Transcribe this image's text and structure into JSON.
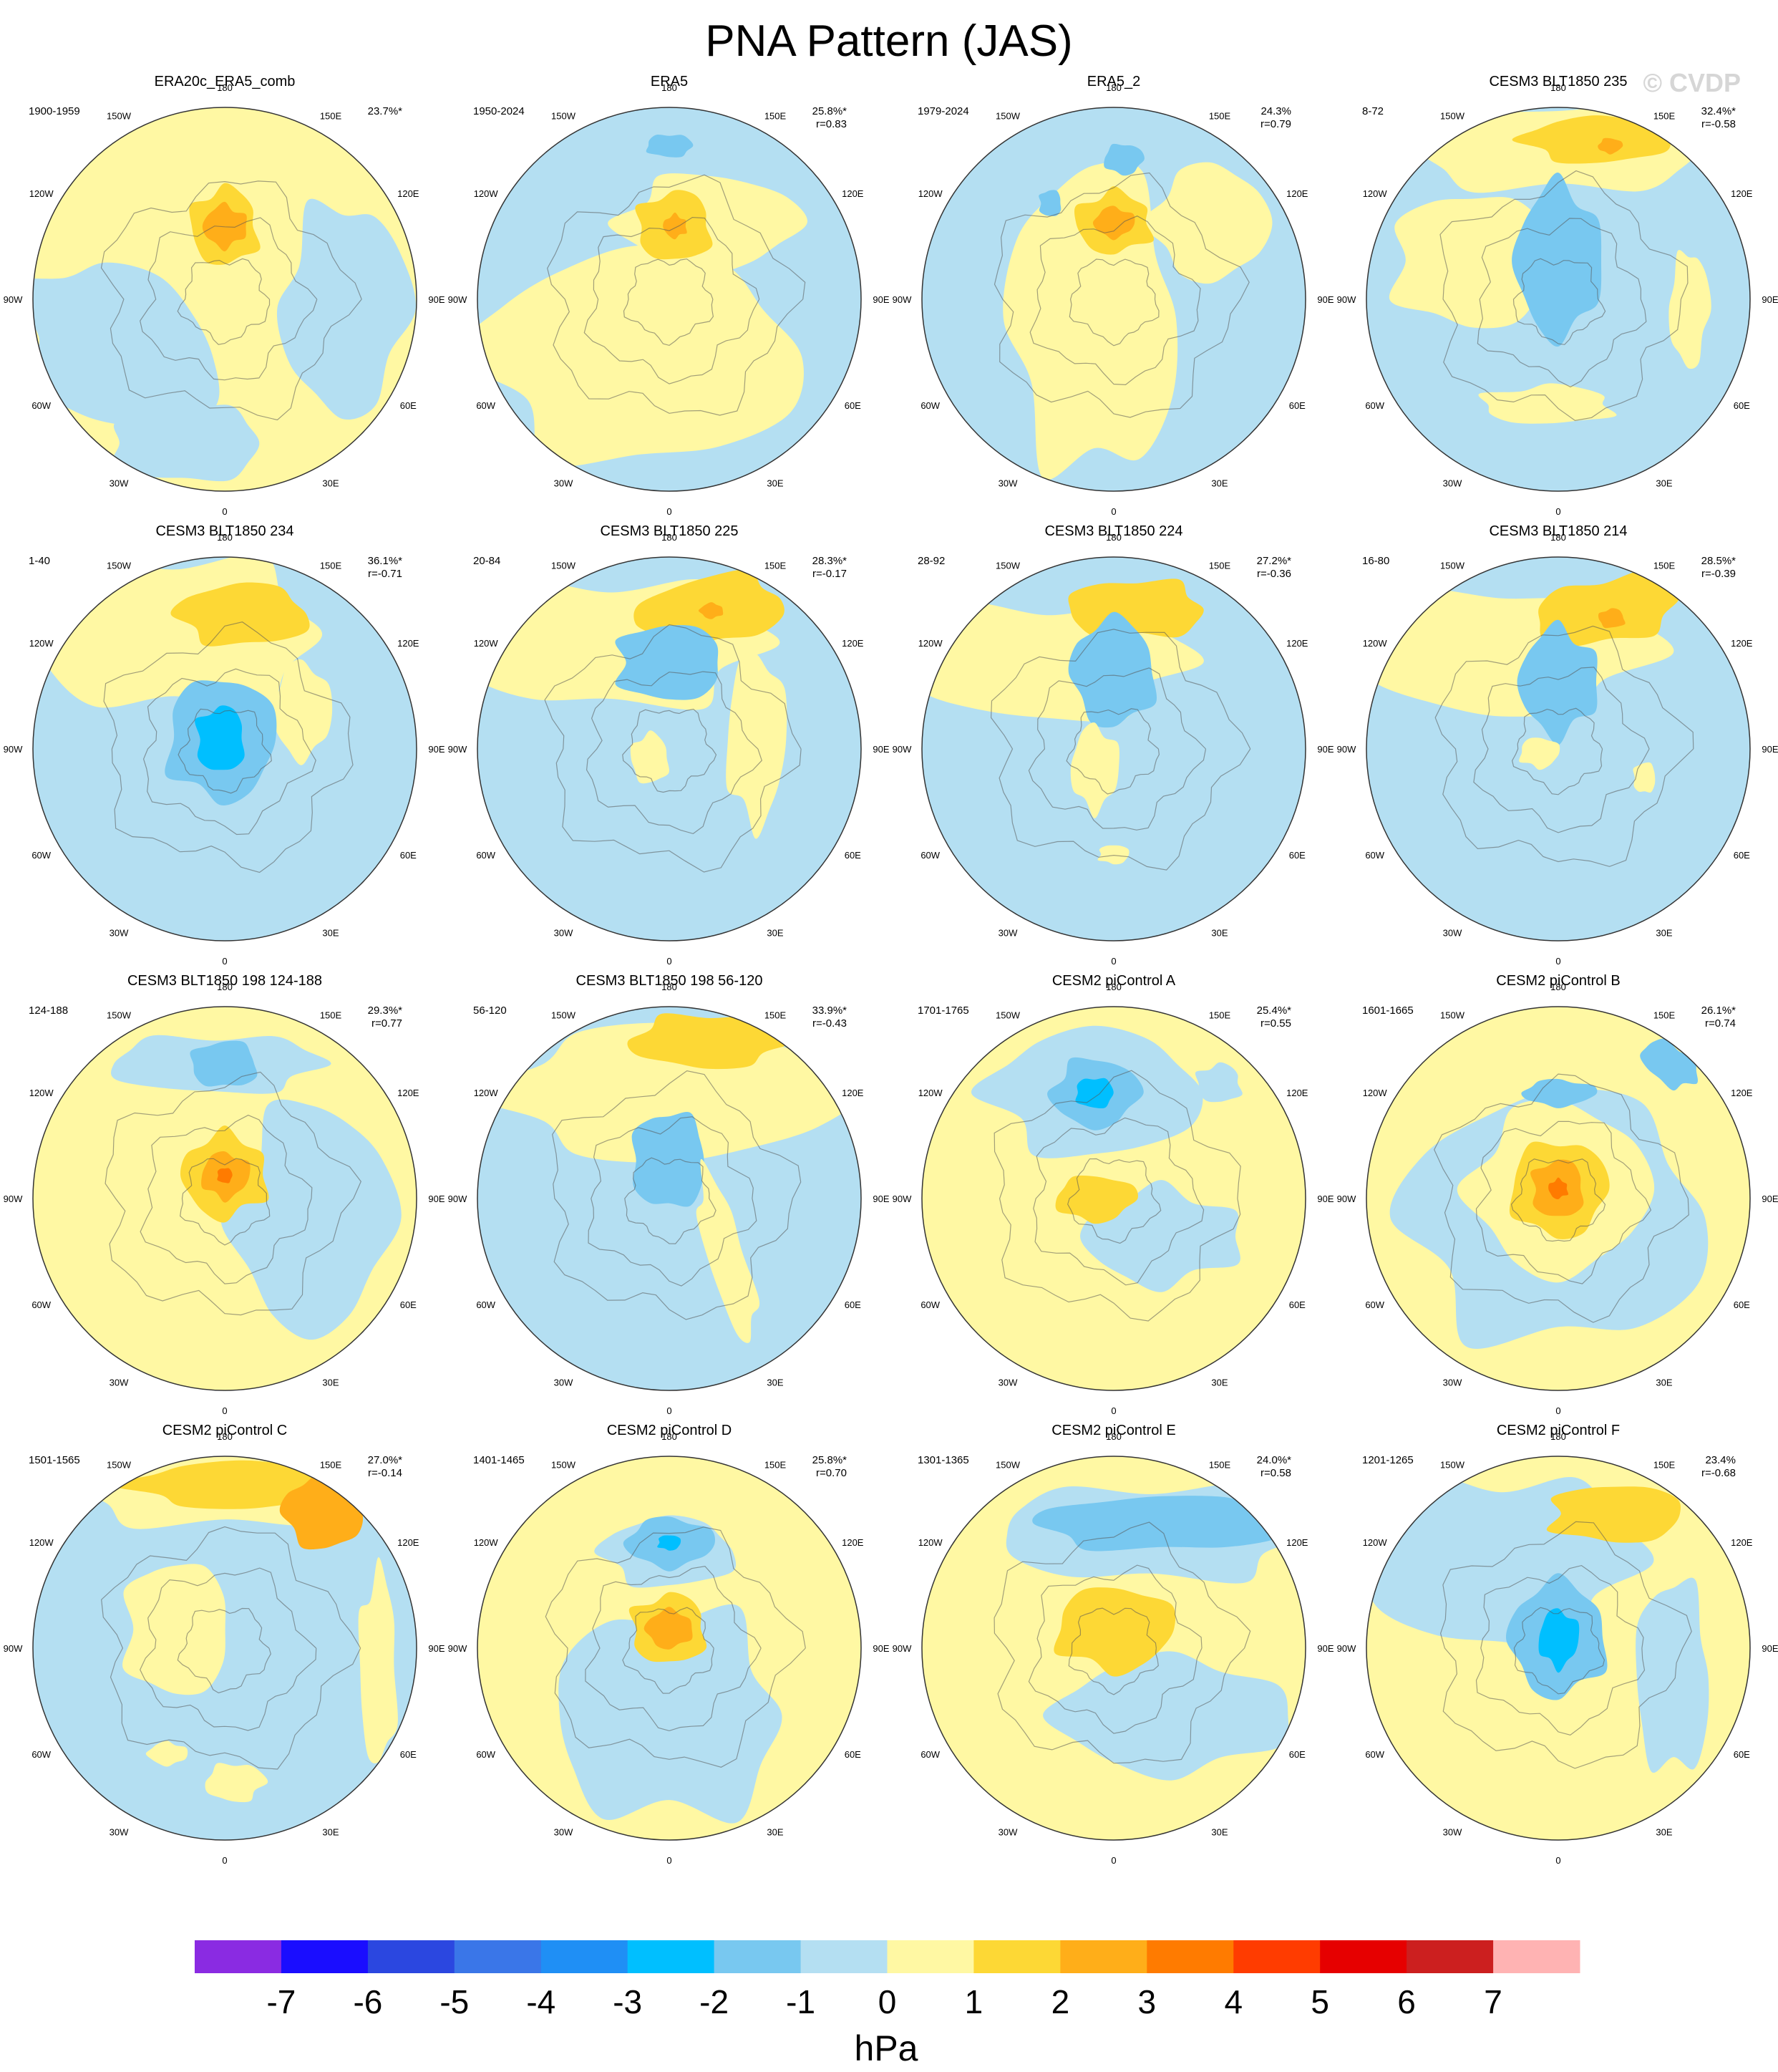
{
  "figure": {
    "title": "PNA Pattern (JAS)",
    "watermark": "© CVDP",
    "unit_label": "hPa"
  },
  "chart_data": {
    "type": "heatmap",
    "projection": "polar stereographic (Northern Hemisphere)",
    "variable": "sea level pressure anomaly",
    "colorbar": {
      "ticks": [
        "-7",
        "-6",
        "-5",
        "-4",
        "-3",
        "-2",
        "-1",
        "0",
        "1",
        "2",
        "3",
        "4",
        "5",
        "6",
        "7"
      ],
      "levels": [
        -7,
        -6,
        -5,
        -4,
        -3,
        -2,
        -1,
        0,
        1,
        2,
        3,
        4,
        5,
        6,
        7
      ],
      "colors": [
        "#8a2be2",
        "#1a0dff",
        "#2b47e0",
        "#3a76e8",
        "#1f8ff5",
        "#00bfff",
        "#78c8f0",
        "#b4dff2",
        "#fff8a3",
        "#fdd835",
        "#ffae19",
        "#ff7b00",
        "#ff3c00",
        "#e60000",
        "#cc1f1f",
        "#ffb3b3"
      ],
      "units": "hPa"
    },
    "longitude_labels": [
      "180",
      "150E",
      "120E",
      "90E",
      "60E",
      "30E",
      "0",
      "30W",
      "60W",
      "90W",
      "120W",
      "150W"
    ],
    "panels": [
      {
        "name": "ERA20c_ERA5_comb",
        "years": "1900-1959",
        "pct": "23.7%*",
        "r": ""
      },
      {
        "name": "ERA5",
        "years": "1950-2024",
        "pct": "25.8%*",
        "r": "r=0.83"
      },
      {
        "name": "ERA5_2",
        "years": "1979-2024",
        "pct": "24.3%",
        "r": "r=0.79"
      },
      {
        "name": "CESM3 BLT1850 235",
        "years": "8-72",
        "pct": "32.4%*",
        "r": "r=-0.58"
      },
      {
        "name": "CESM3 BLT1850 234",
        "years": "1-40",
        "pct": "36.1%*",
        "r": "r=-0.71"
      },
      {
        "name": "CESM3 BLT1850 225",
        "years": "20-84",
        "pct": "28.3%*",
        "r": "r=-0.17"
      },
      {
        "name": "CESM3 BLT1850 224",
        "years": "28-92",
        "pct": "27.2%*",
        "r": "r=-0.36"
      },
      {
        "name": "CESM3 BLT1850 214",
        "years": "16-80",
        "pct": "28.5%*",
        "r": "r=-0.39"
      },
      {
        "name": "CESM3 BLT1850 198 124-188",
        "years": "124-188",
        "pct": "29.3%*",
        "r": "r=0.77"
      },
      {
        "name": "CESM3 BLT1850 198 56-120",
        "years": "56-120",
        "pct": "33.9%*",
        "r": "r=-0.43"
      },
      {
        "name": "CESM2 piControl A",
        "years": "1701-1765",
        "pct": "25.4%*",
        "r": "r=0.55"
      },
      {
        "name": "CESM2 piControl B",
        "years": "1601-1665",
        "pct": "26.1%*",
        "r": "r=0.74"
      },
      {
        "name": "CESM2 piControl C",
        "years": "1501-1565",
        "pct": "27.0%*",
        "r": "r=-0.14"
      },
      {
        "name": "CESM2 piControl D",
        "years": "1401-1465",
        "pct": "25.8%*",
        "r": "r=0.70"
      },
      {
        "name": "CESM2 piControl E",
        "years": "1301-1365",
        "pct": "24.0%*",
        "r": "r=0.58"
      },
      {
        "name": "CESM2 piControl F",
        "years": "1201-1265",
        "pct": "23.4%",
        "r": "r=-0.68"
      }
    ]
  }
}
